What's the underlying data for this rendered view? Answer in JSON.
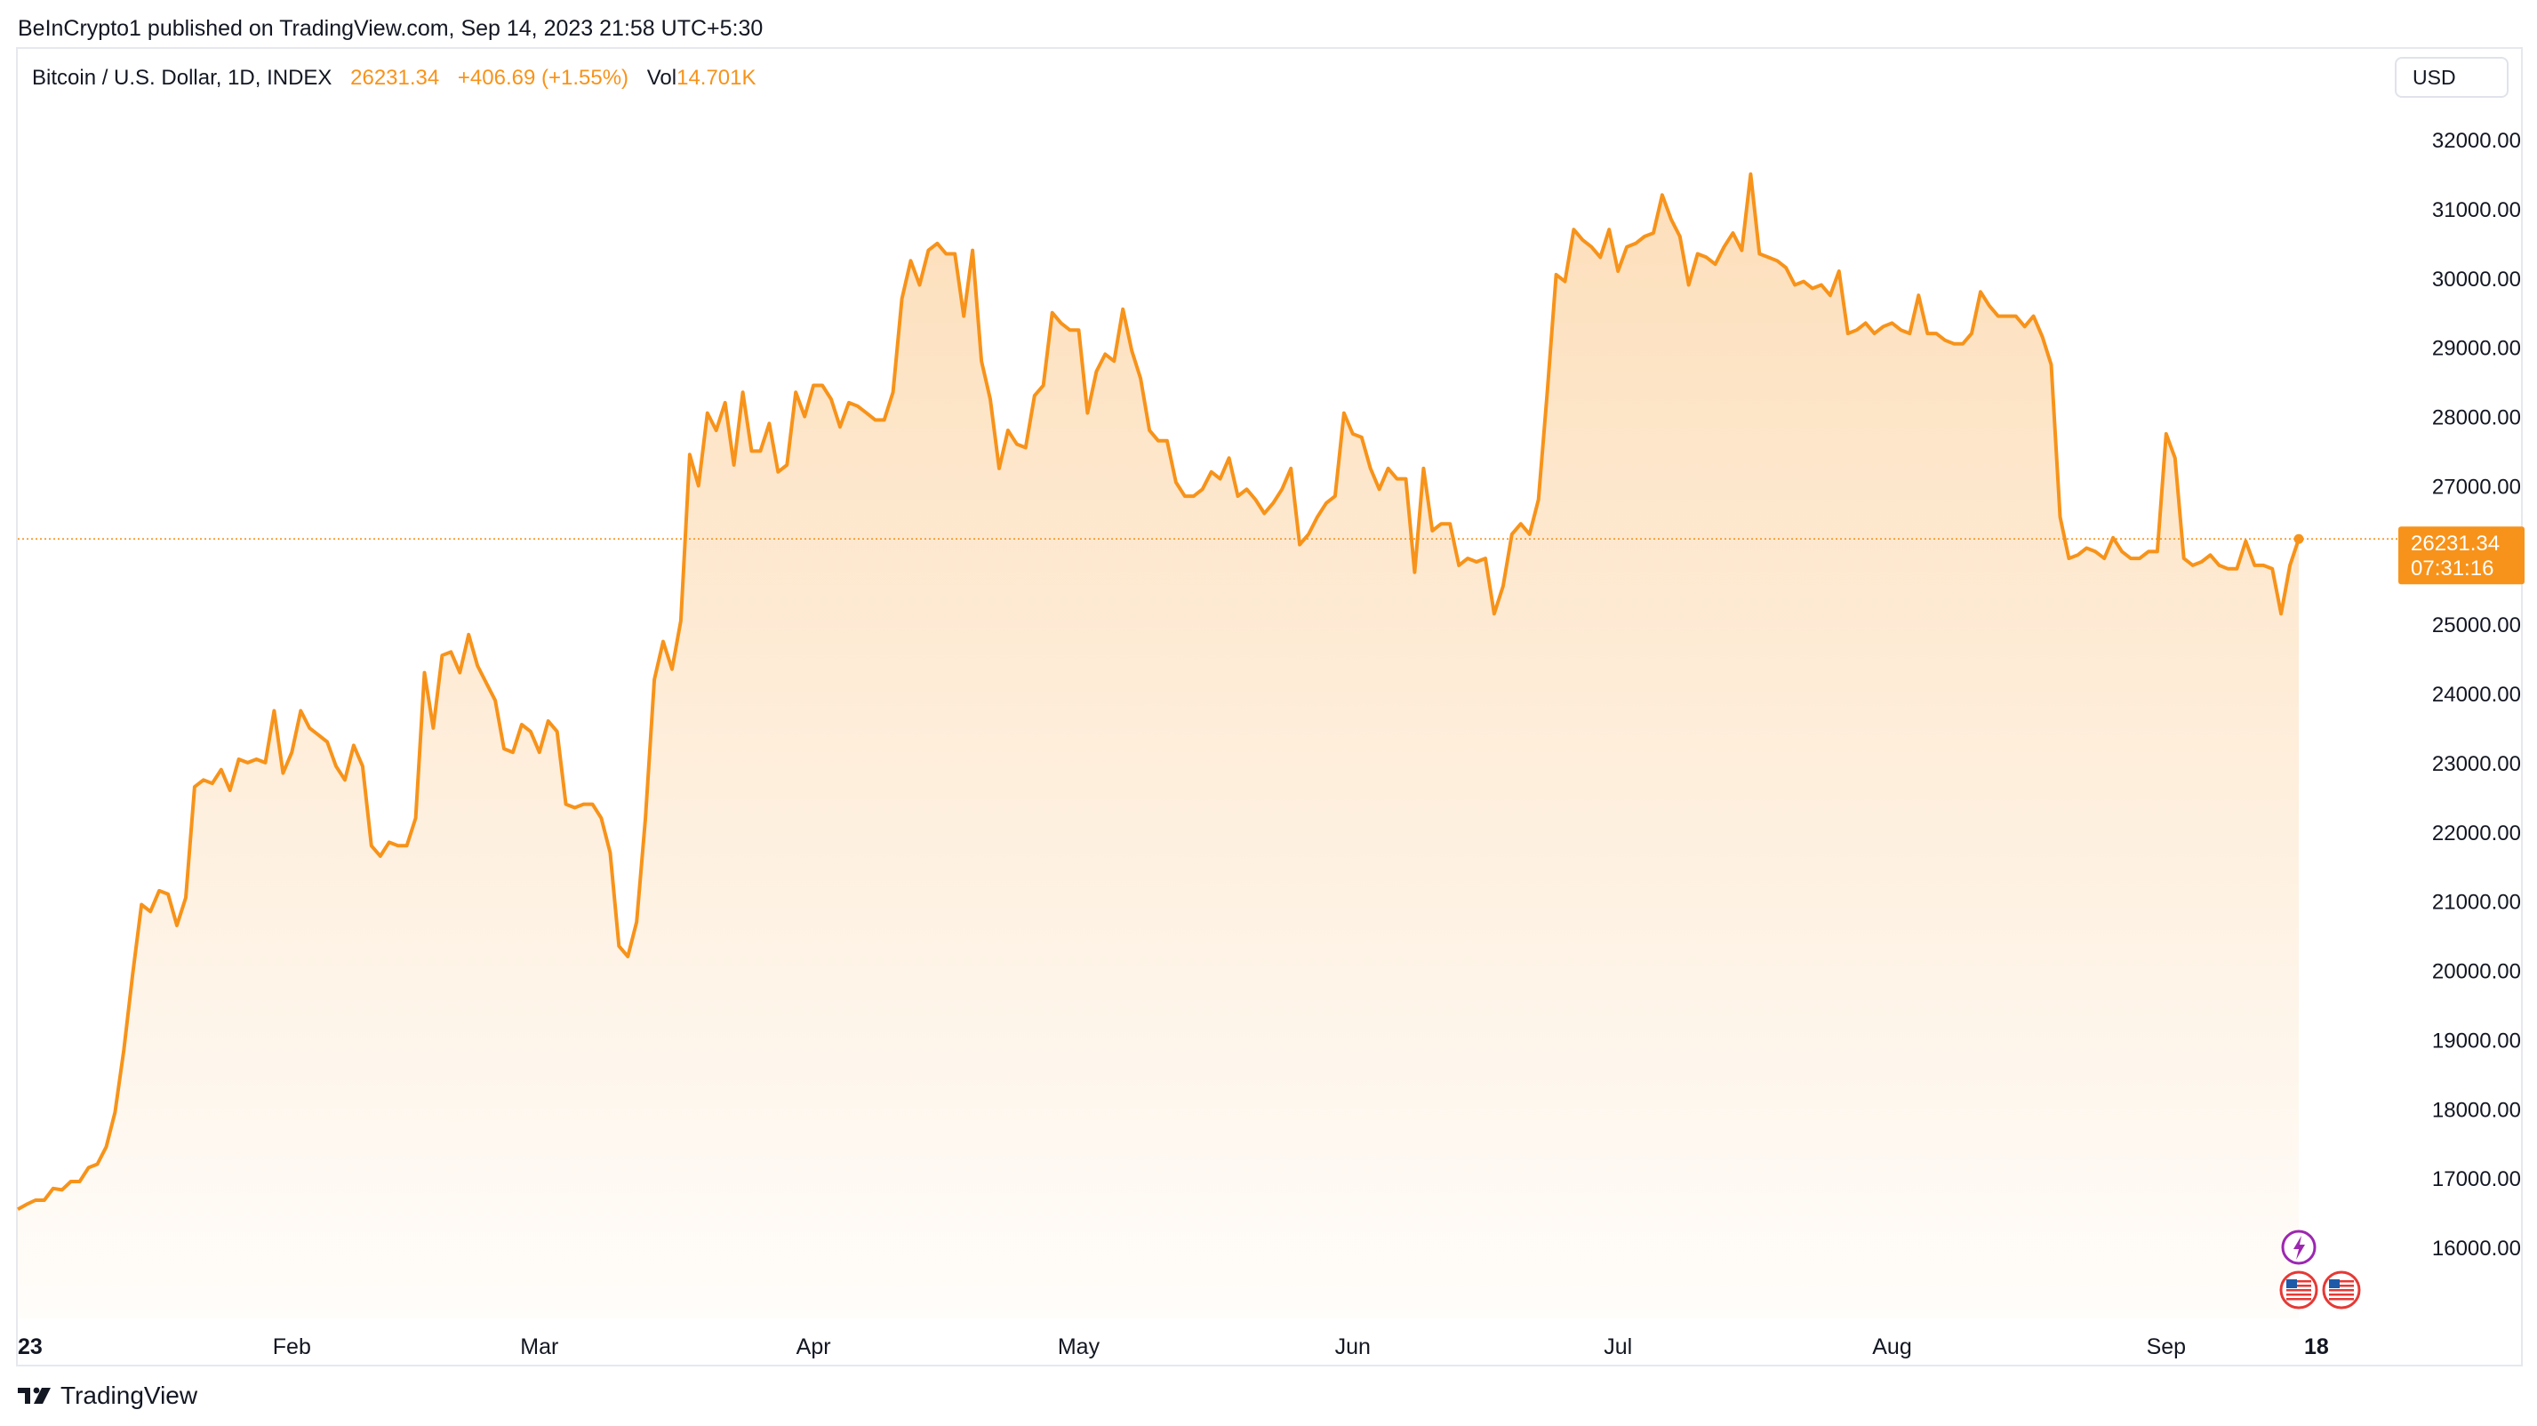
{
  "header": {
    "published_text": "BeInCrypto1 published on TradingView.com, Sep 14, 2023 21:58 UTC+5:30"
  },
  "legend": {
    "symbol": "Bitcoin / U.S. Dollar, 1D, INDEX",
    "last": "26231.34",
    "change": "+406.69 (+1.55%)",
    "vol_label": "Vol",
    "vol_value": "14.701K"
  },
  "currency_button": "USD",
  "price_tag": {
    "price": "26231.34",
    "countdown": "07:31:16"
  },
  "footer": {
    "brand": "TradingView"
  },
  "colors": {
    "line": "#f7931a",
    "fill_top": "#fbd9b5",
    "tag_bg": "#f7931a",
    "text": "#131722"
  },
  "icons": [
    "flash-event-icon",
    "us-flag-event-icon",
    "us-flag-event-icon"
  ],
  "chart_data": {
    "type": "area",
    "title": "Bitcoin / U.S. Dollar, 1D, INDEX",
    "ylim": [
      15000,
      32500
    ],
    "y_ticks": [
      "16000.00",
      "17000.00",
      "18000.00",
      "19000.00",
      "20000.00",
      "21000.00",
      "22000.00",
      "23000.00",
      "24000.00",
      "25000.00",
      "26000.00",
      "27000.00",
      "28000.00",
      "29000.00",
      "30000.00",
      "31000.00",
      "32000.00"
    ],
    "x_ticks": [
      {
        "label": "23",
        "day": 0
      },
      {
        "label": "Feb",
        "day": 31
      },
      {
        "label": "Mar",
        "day": 59
      },
      {
        "label": "Apr",
        "day": 90
      },
      {
        "label": "May",
        "day": 120
      },
      {
        "label": "Jun",
        "day": 151
      },
      {
        "label": "Jul",
        "day": 181
      },
      {
        "label": "Aug",
        "day": 212
      },
      {
        "label": "Sep",
        "day": 243
      },
      {
        "label": "18",
        "day": 260
      }
    ],
    "last_price": 26231.34,
    "grid": false,
    "series": [
      {
        "values": [
          16550,
          16620,
          16680,
          16680,
          16850,
          16830,
          16950,
          16950,
          17150,
          17200,
          17450,
          17950,
          18850,
          19950,
          20950,
          20850,
          21150,
          21100,
          20650,
          21050,
          22650,
          22750,
          22700,
          22900,
          22600,
          23050,
          23000,
          23050,
          23000,
          23750,
          22850,
          23150,
          23750,
          23500,
          23400,
          23300,
          22950,
          22750,
          23250,
          22950,
          21800,
          21650,
          21850,
          21800,
          21800,
          22200,
          24300,
          23500,
          24550,
          24600,
          24300,
          24850,
          24400,
          24150,
          23900,
          23200,
          23150,
          23550,
          23450,
          23150,
          23600,
          23450,
          22400,
          22350,
          22400,
          22400,
          22200,
          21700,
          20350,
          20200,
          20700,
          22200,
          24200,
          24750,
          24350,
          25050,
          27450,
          27000,
          28050,
          27800,
          28200,
          27300,
          28350,
          27500,
          27500,
          27900,
          27200,
          27300,
          28350,
          28000,
          28450,
          28450,
          28250,
          27850,
          28200,
          28150,
          28050,
          27950,
          27950,
          28350,
          29700,
          30250,
          29900,
          30400,
          30500,
          30350,
          30350,
          29450,
          30400,
          28800,
          28250,
          27250,
          27800,
          27600,
          27550,
          28300,
          28450,
          29500,
          29350,
          29250,
          29250,
          28050,
          28650,
          28900,
          28800,
          29550,
          28950,
          28550,
          27800,
          27650,
          27650,
          27050,
          26850,
          26850,
          26950,
          27200,
          27100,
          27400,
          26850,
          26950,
          26800,
          26600,
          26750,
          26950,
          27250,
          26150,
          26300,
          26550,
          26750,
          26850,
          28050,
          27750,
          27700,
          27250,
          26950,
          27250,
          27100,
          27100,
          25750,
          27250,
          26350,
          26450,
          26450,
          25850,
          25950,
          25900,
          25950,
          25150,
          25550,
          26300,
          26450,
          26300,
          26800,
          28350,
          30050,
          29950,
          30700,
          30550,
          30450,
          30300,
          30700,
          30100,
          30450,
          30500,
          30600,
          30650,
          31200,
          30850,
          30600,
          29900,
          30350,
          30300,
          30200,
          30450,
          30650,
          30400,
          31500,
          30350,
          30300,
          30250,
          30150,
          29900,
          29950,
          29850,
          29900,
          29750,
          30100,
          29200,
          29250,
          29350,
          29200,
          29300,
          29350,
          29250,
          29200,
          29750,
          29200,
          29200,
          29100,
          29050,
          29050,
          29200,
          29800,
          29600,
          29450,
          29450,
          29450,
          29300,
          29450,
          29150,
          28750,
          26550,
          25950,
          26000,
          26100,
          26050,
          25950,
          26250,
          26050,
          25950,
          25950,
          26050,
          26050,
          27750,
          27400,
          25950,
          25850,
          25900,
          26000,
          25850,
          25800,
          25800,
          26200,
          25850,
          25850,
          25800,
          25150,
          25850,
          26231.34
        ]
      }
    ]
  }
}
